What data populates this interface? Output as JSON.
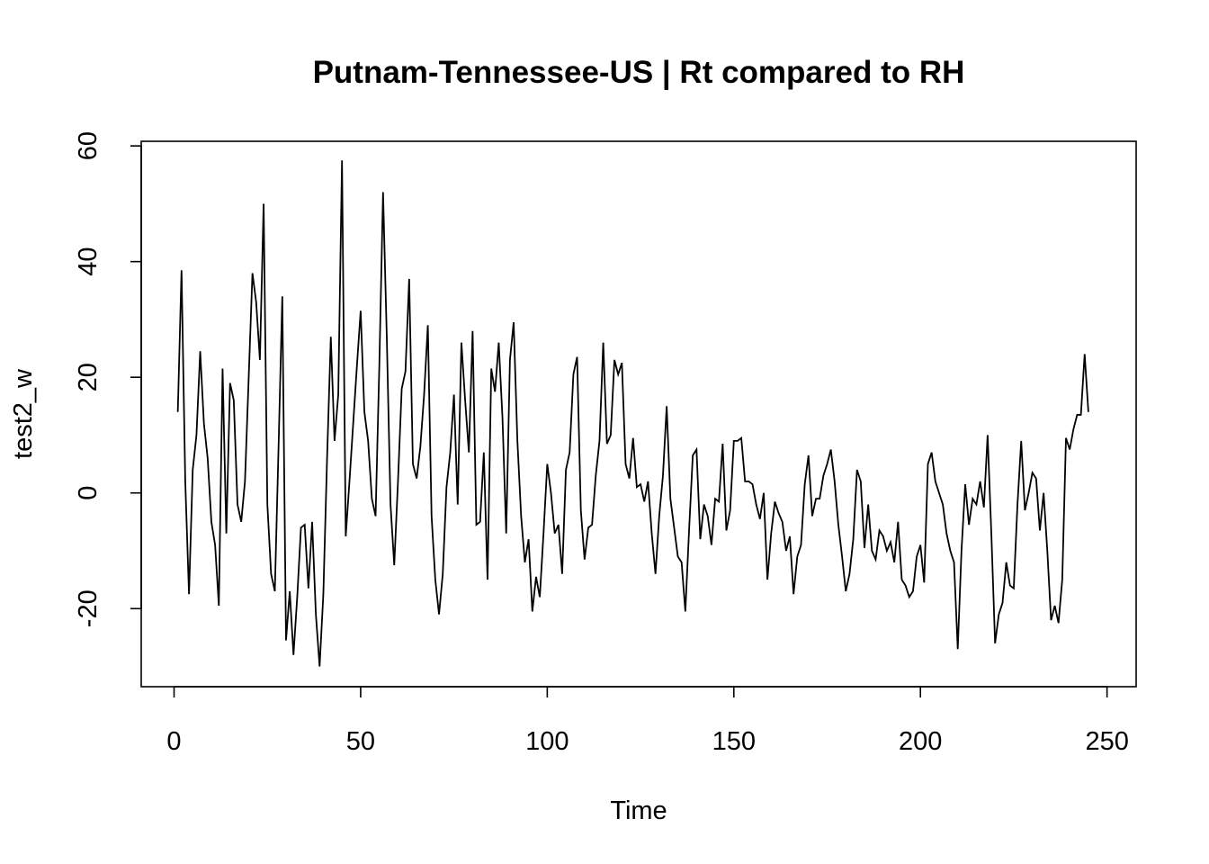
{
  "chart_data": {
    "type": "line",
    "title": "Putnam-Tennessee-US | Rt compared to RH",
    "xlabel": "Time",
    "ylabel": "test2_w",
    "xlim": [
      -8.8,
      257.8
    ],
    "ylim": [
      -33.5,
      60.8
    ],
    "xticks": [
      0,
      50,
      100,
      150,
      200,
      250
    ],
    "yticks": [
      -20,
      0,
      20,
      40,
      60
    ],
    "xtick_labels": [
      "0",
      "50",
      "100",
      "150",
      "200",
      "250"
    ],
    "ytick_labels": [
      "-20",
      "0",
      "20",
      "40",
      "60"
    ],
    "grid": false,
    "series": [
      {
        "color": "#000000",
        "x_start": 1,
        "values": [
          14,
          38.5,
          2,
          -17.5,
          4,
          10,
          24.5,
          12,
          6,
          -5,
          -9,
          -19.5,
          21.5,
          -7,
          19,
          16,
          -2,
          -5,
          2,
          20,
          38,
          33,
          23,
          50,
          -2,
          -14,
          -17,
          8,
          34,
          -25.5,
          -17,
          -28,
          -18,
          -6,
          -5.5,
          -16.5,
          -5,
          -21,
          -30,
          -17.5,
          6,
          27,
          9,
          17,
          57.5,
          -7.5,
          2,
          12,
          22,
          31.5,
          14,
          9,
          -1,
          -4,
          22,
          52,
          27,
          -2,
          -12.5,
          2,
          18,
          21,
          37,
          5,
          2.5,
          8,
          17,
          29,
          -4,
          -15,
          -21,
          -14,
          1,
          7,
          17,
          -2,
          26,
          16,
          7,
          28,
          -5.5,
          -5,
          7,
          -15,
          21.5,
          17.5,
          26,
          13,
          -7,
          23,
          29.5,
          9,
          -4,
          -12,
          -8,
          -20.5,
          -14.5,
          -18,
          -7,
          5,
          0,
          -7,
          -5.5,
          -14,
          4,
          7,
          20.5,
          23.5,
          -3,
          -11.5,
          -6,
          -5.5,
          3,
          9,
          26,
          8.5,
          10,
          23,
          20.5,
          22.5,
          5,
          2.5,
          9.5,
          1,
          1.5,
          -1.5,
          2,
          -7,
          -14,
          -4,
          3,
          15,
          -1,
          -6,
          -11,
          -12,
          -20.5,
          -6.5,
          6.5,
          7.5,
          -8,
          -2,
          -4,
          -9,
          -1,
          -1.5,
          8.5,
          -6.5,
          -3,
          9,
          9,
          9.5,
          2,
          2,
          1.5,
          -2,
          -4.5,
          0,
          -15,
          -7,
          -1.5,
          -3.5,
          -5,
          -10,
          -7.5,
          -17.5,
          -11,
          -9,
          1.5,
          6.5,
          -4,
          -1,
          -1,
          3,
          5,
          7.5,
          2,
          -5.5,
          -11,
          -17,
          -14,
          -8,
          4,
          2,
          -9.5,
          -2,
          -10,
          -11.5,
          -6.5,
          -7.5,
          -10,
          -8.5,
          -12,
          -5,
          -15,
          -16,
          -18,
          -17,
          -11,
          -9,
          -15.5,
          5,
          7,
          2,
          0,
          -2,
          -7,
          -10,
          -12,
          -27,
          -10,
          1.5,
          -5.5,
          -1,
          -2,
          2,
          -2.5,
          10,
          -7,
          -26,
          -21,
          -19,
          -12,
          -16,
          -16.5,
          -2,
          9,
          -3,
          0,
          3.5,
          2.5,
          -6.5,
          0,
          -10,
          -22,
          -19.5,
          -22.5,
          -15,
          9.5,
          7.5,
          11,
          13.5,
          13.5,
          24,
          14
        ]
      }
    ]
  }
}
